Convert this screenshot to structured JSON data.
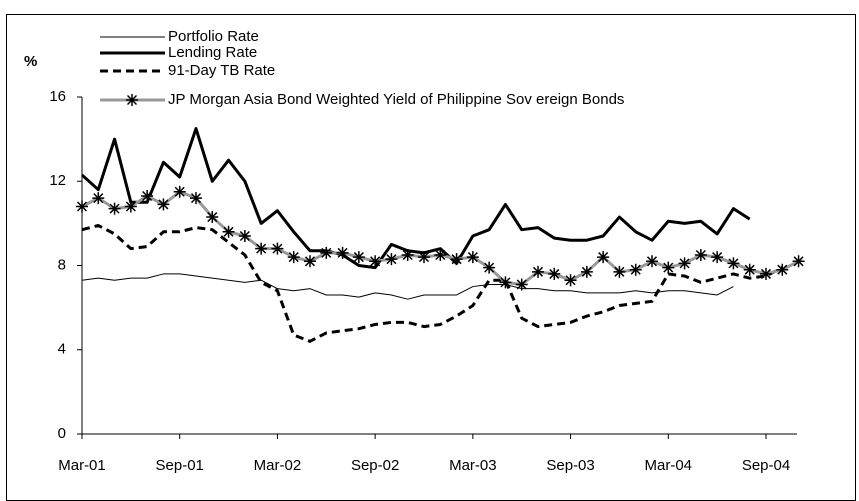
{
  "chart_data": {
    "type": "line",
    "y_label": "%",
    "categories": [
      "Mar-01",
      null,
      null,
      null,
      null,
      null,
      "Sep-01",
      null,
      null,
      null,
      null,
      null,
      "Mar-02",
      null,
      null,
      null,
      null,
      null,
      "Sep-02",
      null,
      null,
      null,
      null,
      null,
      "Mar-03",
      null,
      null,
      null,
      null,
      null,
      "Sep-03",
      null,
      null,
      null,
      null,
      null,
      "Mar-04",
      null,
      null,
      null,
      null,
      null,
      "Sep-04",
      null,
      null
    ],
    "ylim": [
      0,
      16
    ],
    "yticks": [
      0,
      4,
      8,
      12,
      16
    ],
    "grid": false,
    "legend": "top",
    "series": [
      {
        "name": "Portfolio Rate",
        "color": "#000000",
        "width": 1,
        "style": "solid",
        "values": [
          7.3,
          7.4,
          7.3,
          7.4,
          7.4,
          7.6,
          7.6,
          7.5,
          7.4,
          7.3,
          7.2,
          7.3,
          6.9,
          6.8,
          6.9,
          6.6,
          6.6,
          6.5,
          6.7,
          6.6,
          6.4,
          6.6,
          6.6,
          6.6,
          7.0,
          7.1,
          7.1,
          6.9,
          6.9,
          6.8,
          6.8,
          6.7,
          6.7,
          6.7,
          6.8,
          6.7,
          6.8,
          6.8,
          6.7,
          6.6,
          7.0,
          null,
          null,
          null,
          null
        ]
      },
      {
        "name": "Lending Rate",
        "color": "#000000",
        "width": 3,
        "style": "solid",
        "values": [
          12.3,
          11.6,
          14.0,
          11.0,
          11.0,
          12.9,
          12.2,
          14.5,
          12.0,
          13.0,
          12.0,
          10.0,
          10.6,
          9.6,
          8.7,
          8.7,
          8.5,
          8.0,
          7.9,
          9.0,
          8.7,
          8.6,
          8.8,
          8.1,
          9.4,
          9.7,
          10.9,
          9.7,
          9.8,
          9.3,
          9.2,
          9.2,
          9.4,
          10.3,
          9.6,
          9.2,
          10.1,
          10.0,
          10.1,
          9.5,
          10.7,
          10.2,
          null,
          null,
          null
        ]
      },
      {
        "name": "91-Day  TB Rate",
        "color": "#000000",
        "width": 3,
        "style": "dashed",
        "values": [
          9.7,
          9.9,
          9.5,
          8.8,
          8.9,
          9.6,
          9.6,
          9.8,
          9.7,
          9.1,
          8.5,
          7.2,
          6.8,
          4.7,
          4.4,
          4.8,
          4.9,
          5.0,
          5.2,
          5.3,
          5.3,
          5.1,
          5.2,
          5.6,
          6.1,
          7.3,
          7.3,
          5.5,
          5.1,
          5.2,
          5.3,
          5.6,
          5.8,
          6.1,
          6.2,
          6.3,
          7.6,
          7.5,
          7.2,
          7.4,
          7.6,
          7.4,
          7.5,
          7.9,
          null
        ]
      },
      {
        "name": "JP Morgan Asia Bond Weighted Yield of Philippine Sov ereign Bonds",
        "color": "#999999",
        "width": 3,
        "style": "solid",
        "marker": "asterisk",
        "values": [
          10.8,
          11.2,
          10.7,
          10.8,
          11.3,
          10.9,
          11.5,
          11.2,
          10.3,
          9.6,
          9.4,
          8.8,
          8.8,
          8.4,
          8.2,
          8.6,
          8.6,
          8.4,
          8.2,
          8.3,
          8.5,
          8.4,
          8.5,
          8.3,
          8.4,
          7.9,
          7.2,
          7.1,
          7.7,
          7.6,
          7.3,
          7.7,
          8.4,
          7.7,
          7.8,
          8.2,
          7.9,
          8.1,
          8.5,
          8.4,
          8.1,
          7.8,
          7.6,
          7.8,
          8.2
        ]
      }
    ]
  }
}
